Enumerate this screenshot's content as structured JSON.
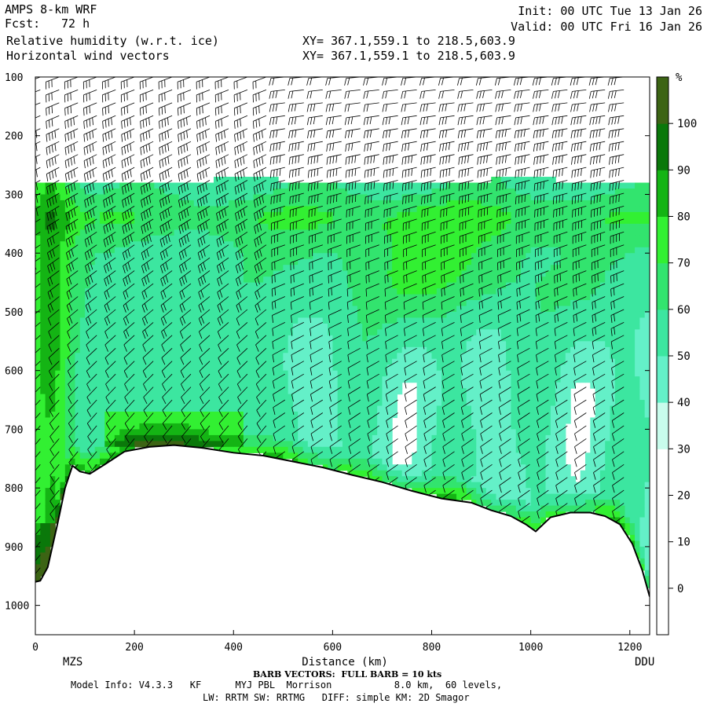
{
  "header": {
    "model": "AMPS 8-km WRF",
    "fcst_label": "Fcst:",
    "fcst_value": "72 h",
    "var1": "Relative humidity (w.r.t. ice)",
    "var2": "Horizontal wind vectors",
    "xy1": "XY= 367.1,559.1 to 218.5,603.9",
    "xy2": "XY= 367.1,559.1 to 218.5,603.9",
    "init": "Init: 00 UTC Tue 13 Jan 26",
    "valid": "Valid: 00 UTC Fri 16 Jan 26"
  },
  "footer": {
    "barb_note": "BARB VECTORS:  FULL BARB = 10 kts",
    "model_info": "Model Info: V4.3.3   KF      MYJ PBL  Morrison           8.0 km,  60 levels,",
    "physics": "LW: RRTM SW: RRTMG   DIFF: simple KM: 2D Smagor"
  },
  "chart_data": {
    "type": "heatmap",
    "title": "Relative humidity (w.r.t. ice)",
    "xlabel": "Distance (km)",
    "ylabel": "",
    "xlim": [
      0,
      1240
    ],
    "ylim": [
      1050,
      100
    ],
    "x_ticks": [
      0,
      200,
      400,
      600,
      800,
      1000,
      1200
    ],
    "y_ticks": [
      100,
      200,
      300,
      400,
      500,
      600,
      700,
      800,
      900,
      1000
    ],
    "endpoints": {
      "left": "MZS",
      "right": "DDU"
    },
    "colorbar": {
      "unit": "%",
      "labels": [
        0,
        10,
        20,
        30,
        40,
        50,
        60,
        70,
        80,
        90,
        100
      ],
      "colors": [
        "#ffffff",
        "#ffffff",
        "#ffffff",
        "#c8fcec",
        "#64f0c8",
        "#3ce6a0",
        "#32e46e",
        "#32f032",
        "#14b414",
        "#0a780a",
        "#3c6414"
      ]
    },
    "terrain_pressure": [
      [
        0,
        960
      ],
      [
        10,
        958
      ],
      [
        25,
        935
      ],
      [
        45,
        860
      ],
      [
        60,
        800
      ],
      [
        75,
        762
      ],
      [
        90,
        772
      ],
      [
        110,
        776
      ],
      [
        140,
        760
      ],
      [
        180,
        738
      ],
      [
        230,
        730
      ],
      [
        280,
        727
      ],
      [
        340,
        732
      ],
      [
        400,
        740
      ],
      [
        460,
        745
      ],
      [
        520,
        755
      ],
      [
        580,
        765
      ],
      [
        640,
        778
      ],
      [
        700,
        790
      ],
      [
        760,
        805
      ],
      [
        820,
        818
      ],
      [
        880,
        825
      ],
      [
        920,
        838
      ],
      [
        960,
        848
      ],
      [
        990,
        862
      ],
      [
        1010,
        874
      ],
      [
        1040,
        850
      ],
      [
        1080,
        842
      ],
      [
        1120,
        842
      ],
      [
        1150,
        848
      ],
      [
        1180,
        862
      ],
      [
        1205,
        895
      ],
      [
        1225,
        940
      ],
      [
        1240,
        985
      ]
    ],
    "humid_layer": {
      "top_pressure": 278,
      "dry_above": true
    },
    "wind_barbs_note": "FULL BARB = 10 kts"
  }
}
